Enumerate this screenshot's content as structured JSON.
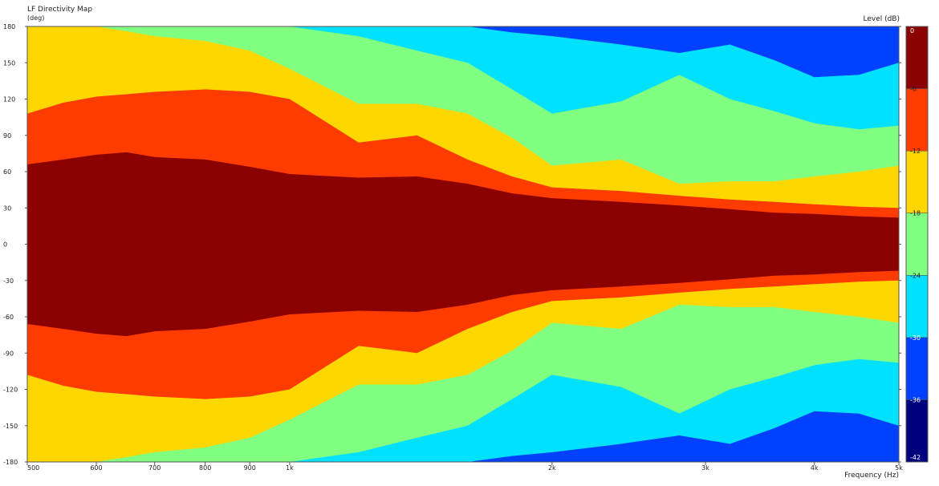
{
  "chart_data": {
    "type": "heatmap",
    "title": "LF Directivity Map",
    "y_unit": "(deg)",
    "colorbar_title": "Level  (dB)",
    "xlabel": "Frequency  (Hz)",
    "x_scale": "log",
    "xlim": [
      500,
      5000
    ],
    "ylim": [
      -180,
      180
    ],
    "x_ticks": [
      {
        "value": 500,
        "label": "500"
      },
      {
        "value": 600,
        "label": "600"
      },
      {
        "value": 700,
        "label": "700"
      },
      {
        "value": 800,
        "label": "800"
      },
      {
        "value": 900,
        "label": "900"
      },
      {
        "value": 1000,
        "label": "1k"
      },
      {
        "value": 2000,
        "label": "2k"
      },
      {
        "value": 3000,
        "label": "3k"
      },
      {
        "value": 4000,
        "label": "4k"
      },
      {
        "value": 5000,
        "label": "5k"
      }
    ],
    "y_ticks": [
      180,
      150,
      120,
      90,
      60,
      30,
      0,
      -30,
      -60,
      -90,
      -120,
      -150,
      -180
    ],
    "colorbar": {
      "levels": [
        0,
        -6,
        -12,
        -18,
        -24,
        -30,
        -36,
        -42
      ],
      "bands": [
        {
          "min": -6,
          "max": 0,
          "color": "#8b0000"
        },
        {
          "min": -12,
          "max": -6,
          "color": "#ff3c00"
        },
        {
          "min": -18,
          "max": -12,
          "color": "#ffd700"
        },
        {
          "min": -24,
          "max": -18,
          "color": "#80ff80"
        },
        {
          "min": -30,
          "max": -24,
          "color": "#00e1ff"
        },
        {
          "min": -36,
          "max": -30,
          "color": "#0040ff"
        },
        {
          "min": -42,
          "max": -36,
          "color": "#00007f"
        }
      ]
    },
    "contours": {
      "frequencies": [
        500,
        550,
        600,
        650,
        700,
        800,
        900,
        1000,
        1200,
        1400,
        1600,
        1800,
        2000,
        2400,
        2800,
        3200,
        3600,
        4000,
        4500,
        5000
      ],
      "minus6_angle": [
        66,
        70,
        74,
        76,
        72,
        70,
        64,
        58,
        55,
        56,
        50,
        42,
        38,
        35,
        32,
        29,
        26,
        25,
        23,
        22
      ],
      "minus12_angle": [
        108,
        117,
        122,
        124,
        126,
        128,
        126,
        120,
        84,
        90,
        70,
        56,
        47,
        44,
        40,
        37,
        35,
        33,
        31,
        30
      ],
      "minus18_angle": [
        180,
        180,
        180,
        176,
        172,
        168,
        160,
        145,
        116,
        116,
        108,
        88,
        65,
        70,
        50,
        52,
        52,
        56,
        60,
        65
      ],
      "minus24_angle": [
        180,
        180,
        180,
        180,
        180,
        180,
        180,
        180,
        172,
        160,
        150,
        128,
        108,
        118,
        140,
        120,
        110,
        100,
        95,
        98
      ],
      "minus30_angle": [
        180,
        180,
        180,
        180,
        180,
        180,
        180,
        180,
        180,
        180,
        180,
        175,
        172,
        165,
        158,
        165,
        152,
        138,
        140,
        150
      ]
    }
  }
}
